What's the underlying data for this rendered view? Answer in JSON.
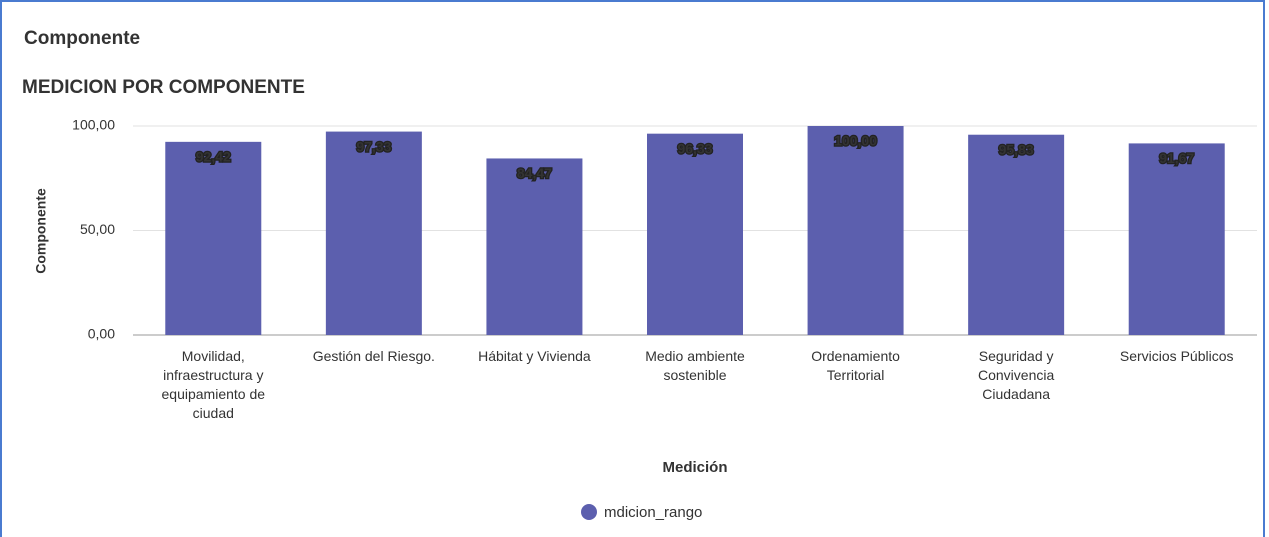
{
  "panel": {
    "title": "Componente"
  },
  "chart_data": {
    "type": "bar",
    "title": "MEDICION POR COMPONENTE",
    "x_label": "Medición",
    "y_label": "Componente",
    "categories": [
      "Movilidad, infraestructura y equipamiento de ciudad",
      "Gestión del Riesgo.",
      "Hábitat y Vivienda",
      "Medio ambiente sostenible",
      "Ordenamiento Territorial",
      "Seguridad y Convivencia Ciudadana",
      "Servicios Públicos"
    ],
    "series": [
      {
        "name": "mdicion_rango",
        "color": "#5c5fae",
        "values": [
          92.42,
          97.33,
          84.47,
          96.33,
          100.0,
          95.83,
          91.67
        ],
        "value_labels": [
          "92,42",
          "97,33",
          "84,47",
          "96,33",
          "100,00",
          "95,83",
          "91,67"
        ]
      }
    ],
    "ylim": [
      0,
      100
    ],
    "yticks": [
      {
        "value": 0,
        "label": "0,00"
      },
      {
        "value": 50,
        "label": "50,00"
      },
      {
        "value": 100,
        "label": "100,00"
      }
    ],
    "grid": true,
    "legend": "bottom"
  }
}
